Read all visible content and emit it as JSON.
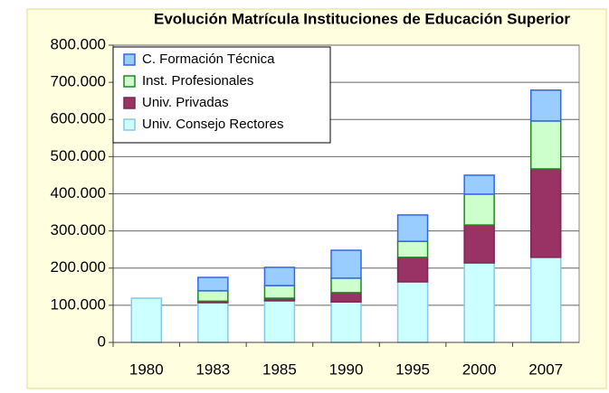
{
  "chart_data": {
    "type": "stacked_bar",
    "title": "Evolución Matrícula Instituciones de Educación Superior",
    "categories": [
      "1980",
      "1983",
      "1985",
      "1990",
      "1995",
      "2000",
      "2007"
    ],
    "series": [
      {
        "name": "Univ. Consejo Rectores",
        "color": "#ccffff",
        "stroke": "#88c8e8",
        "values": [
          119000,
          107000,
          112000,
          109000,
          163000,
          214000,
          229000
        ]
      },
      {
        "name": "Univ. Privadas",
        "color": "#993366",
        "stroke": "#7a2850",
        "values": [
          0,
          4000,
          7000,
          25000,
          66000,
          102000,
          238000
        ]
      },
      {
        "name": "Inst. Profesionales",
        "color": "#ccffcc",
        "stroke": "#228822",
        "values": [
          0,
          28000,
          34000,
          39000,
          43000,
          83000,
          129000
        ]
      },
      {
        "name": "C. Formación Técnica",
        "color": "#99ccff",
        "stroke": "#3366ee",
        "values": [
          0,
          36000,
          49000,
          75000,
          71000,
          51000,
          83000
        ]
      }
    ],
    "ylim": [
      0,
      800000
    ],
    "yticks": [
      0,
      {
        "value": 100000,
        "label": "100.000"
      },
      {
        "value": 200000,
        "label": "200.000"
      },
      {
        "value": 300000,
        "label": "300.000"
      },
      {
        "value": 400000,
        "label": "400.000"
      },
      {
        "value": 500000,
        "label": "500.000"
      },
      {
        "value": 600000,
        "label": "600.000"
      },
      {
        "value": 700000,
        "label": "700.000"
      },
      {
        "value": 800000,
        "label": "800.000"
      }
    ],
    "grid": true,
    "legend": "top-left"
  }
}
